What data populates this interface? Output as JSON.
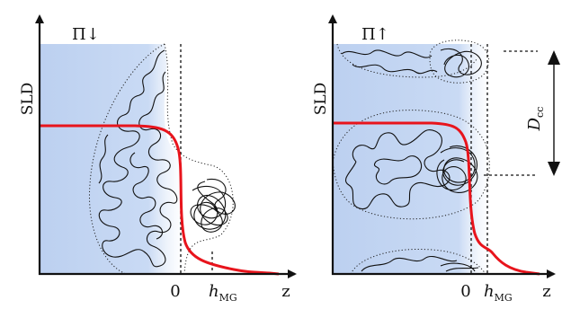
{
  "panels": [
    {
      "y_label": "SLD",
      "x_label": "z",
      "pressure_label": "Π↓",
      "zero_label": "0",
      "h_label": "h",
      "h_sub": "MG"
    },
    {
      "y_label": "SLD",
      "x_label": "z",
      "pressure_label": "Π↑",
      "zero_label": "0",
      "h_label": "h",
      "h_sub": "MG",
      "distance_label": "D",
      "distance_sub": "cc"
    }
  ],
  "colors": {
    "water_fill": "#c4d6f2",
    "sld_curve": "#e8141c",
    "axes": "#111111"
  }
}
